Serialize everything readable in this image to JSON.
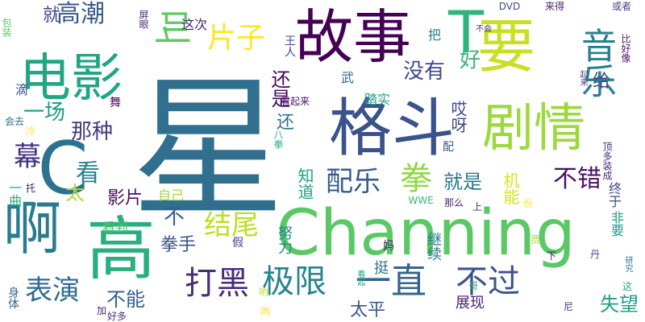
{
  "word_cloud": {
    "background": "#ffffff",
    "words": [
      {
        "text": "星",
        "color": "#30708e"
      },
      {
        "text": "Channing",
        "color": "#5ac864"
      },
      {
        "text": "格斗",
        "color": "#3a538b"
      },
      {
        "text": "故事",
        "color": "#440154"
      },
      {
        "text": "电影",
        "color": "#21a685"
      },
      {
        "text": "要",
        "color": "#c8e020"
      },
      {
        "text": "剧情",
        "color": "#9dd93b"
      },
      {
        "text": "T",
        "color": "#2fb47c"
      },
      {
        "text": "C",
        "color": "#2c728e"
      },
      {
        "text": "高",
        "color": "#29af7f"
      },
      {
        "text": "啊",
        "color": "#297b8e"
      },
      {
        "text": "一直",
        "color": "#32648e"
      },
      {
        "text": "音乐",
        "color": "#27808e"
      },
      {
        "text": "极限",
        "color": "#25858e"
      },
      {
        "text": "打黑",
        "color": "#472c7a"
      },
      {
        "text": "不过",
        "color": "#3b528b"
      },
      {
        "text": "结尾",
        "color": "#bddf26"
      },
      {
        "text": "表演",
        "color": "#2e6d8e"
      },
      {
        "text": "配乐",
        "color": "#365c8d"
      },
      {
        "text": "拳",
        "color": "#8fd744"
      },
      {
        "text": "片子",
        "color": "#fde725"
      },
      {
        "text": "叫",
        "color": "#5ec962"
      },
      {
        "text": "高潮",
        "color": "#38588c"
      },
      {
        "text": "幕",
        "color": "#46337e"
      },
      {
        "text": "一场",
        "color": "#1f988b"
      },
      {
        "text": "看",
        "color": "#26828e"
      },
      {
        "text": "太",
        "color": "#addc30"
      },
      {
        "text": "那种",
        "color": "#443983"
      },
      {
        "text": "不错",
        "color": "#471063"
      },
      {
        "text": "没有",
        "color": "#3e4a89"
      },
      {
        "text": "好",
        "color": "#35b779"
      },
      {
        "text": "还是",
        "color": "#46085c"
      },
      {
        "text": "就是",
        "color": "#2a788e"
      },
      {
        "text": "不",
        "color": "#355f8d"
      },
      {
        "text": "影片",
        "color": "#471365"
      },
      {
        "text": "太平",
        "color": "#38588c"
      },
      {
        "text": "失望",
        "color": "#1f9e89"
      },
      {
        "text": "不能",
        "color": "#355e8d"
      },
      {
        "text": "知道",
        "color": "#1fa187"
      },
      {
        "text": "就",
        "color": "#3f4788"
      },
      {
        "text": "哎呀",
        "color": "#3e4989"
      },
      {
        "text": "拳手",
        "color": "#3b528b"
      },
      {
        "text": "机能",
        "color": "#d8e219"
      },
      {
        "text": "这次",
        "color": "#482475"
      },
      {
        "text": "看到",
        "color": "#4ac16d"
      },
      {
        "text": "自己",
        "color": "#9fda3a"
      },
      {
        "text": "努力",
        "color": "#24878e"
      },
      {
        "text": "继续",
        "color": "#2a788e"
      },
      {
        "text": "给",
        "color": "#3f4889"
      },
      {
        "text": "终于",
        "color": "#3d4e8a"
      },
      {
        "text": "非要",
        "color": "#1f9a8a"
      },
      {
        "text": "展现",
        "color": "#481f70"
      },
      {
        "text": "踏实",
        "color": "#1fa088"
      },
      {
        "text": "一曲",
        "color": "#26ad81"
      },
      {
        "text": "还",
        "color": "#2d708e"
      },
      {
        "text": "身体",
        "color": "#31678e"
      },
      {
        "text": "挺",
        "color": "#2c718e"
      },
      {
        "text": "DVD",
        "color": "#3e4a89"
      },
      {
        "text": "或者",
        "color": "#443b84"
      },
      {
        "text": "来得",
        "color": "#482071"
      },
      {
        "text": "不会",
        "color": "#46327e"
      },
      {
        "text": "比好像",
        "color": "#481b6d"
      },
      {
        "text": "起来",
        "color": "#433e85"
      },
      {
        "text": "王人",
        "color": "#3f4788"
      },
      {
        "text": "包装",
        "color": "#5cc863"
      },
      {
        "text": "屏眼",
        "color": "#482878"
      },
      {
        "text": "把",
        "color": "#26828e"
      },
      {
        "text": "武",
        "color": "#33638d"
      },
      {
        "text": "滴",
        "color": "#3a548c"
      },
      {
        "text": "舞",
        "color": "#450559"
      },
      {
        "text": "会去",
        "color": "#2d718e"
      },
      {
        "text": "看起来",
        "color": "#481467"
      },
      {
        "text": "八拳",
        "color": "#2ab07f"
      },
      {
        "text": "冷",
        "color": "#fde725"
      },
      {
        "text": "托",
        "color": "#481769"
      },
      {
        "text": "配",
        "color": "#3b528b"
      },
      {
        "text": "那么",
        "color": "#482677"
      },
      {
        "text": "WWE",
        "color": "#35b779"
      },
      {
        "text": "上",
        "color": "#472d7b"
      },
      {
        "text": "份",
        "color": "#fde725"
      },
      {
        "text": "顶多装成",
        "color": "#472d7b"
      },
      {
        "text": "丹",
        "color": "#3f4889"
      },
      {
        "text": "研究",
        "color": "#2a788e"
      },
      {
        "text": "这",
        "color": "#22a884"
      },
      {
        "text": "贾",
        "color": "#addc30"
      },
      {
        "text": "下",
        "color": "#48186a"
      },
      {
        "text": "妈",
        "color": "#482173"
      },
      {
        "text": "哟",
        "color": "#c2df23"
      },
      {
        "text": "两",
        "color": "#fde725"
      },
      {
        "text": "看起",
        "color": "#1fa187"
      },
      {
        "text": "哥",
        "color": "#27ad81"
      },
      {
        "text": "尼",
        "color": "#404588"
      },
      {
        "text": "假",
        "color": "#414487"
      },
      {
        "text": "加",
        "color": "#472a7a"
      },
      {
        "text": "好多",
        "color": "#46337f"
      }
    ]
  }
}
